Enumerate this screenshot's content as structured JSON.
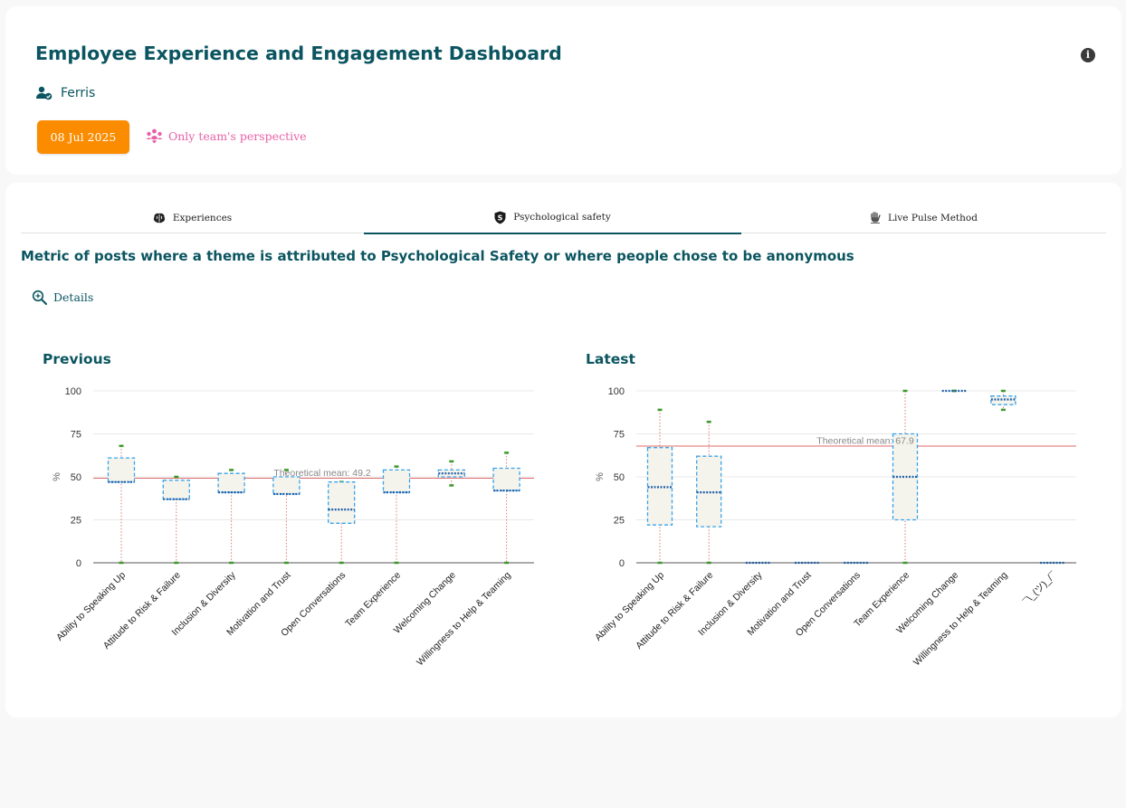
{
  "header": {
    "title": "Employee Experience and Engagement Dashboard",
    "user_name": "Ferris",
    "date_button": "08 Jul 2025",
    "perspective_label": "Only team's perspective"
  },
  "tabs": [
    {
      "label": "Experiences",
      "icon": "brain-icon",
      "active": false
    },
    {
      "label": "Psychological safety",
      "icon": "shield-icon",
      "active": true
    },
    {
      "label": "Live Pulse Method",
      "icon": "hand-icon",
      "active": false
    }
  ],
  "main": {
    "subtitle": "Metric of posts where a theme is attributed to Psychological Safety or where people chose to be anonymous",
    "details_label": "Details"
  },
  "colors": {
    "accent": "#0b5560",
    "date_button": "#fb8c00",
    "perspective": "#e861a8",
    "box_border": "#3aa3e8",
    "median": "#1f5fa8",
    "whisker": "#e07a7a",
    "whisker_cap": "#3d9a2a",
    "mean_line": "#e06a6a"
  },
  "chart_data": [
    {
      "type": "boxplot",
      "title": "Previous",
      "ylabel": "%",
      "ylim": [
        0,
        100
      ],
      "yticks": [
        0,
        25,
        50,
        75,
        100
      ],
      "grid": true,
      "mean_label": "Theoretical mean: 49.2",
      "mean": 49.2,
      "categories": [
        "Ability to Speaking Up",
        "Attitude to Risk & Failure",
        "Inclusion & Diversity",
        "Motivation and Trust",
        "Open Conversations",
        "Team Experience",
        "Welcoming Change",
        "Willingness to Help & Teaming"
      ],
      "boxes": [
        {
          "min": 0,
          "q1": 47,
          "median": 47,
          "q3": 61,
          "max": 68
        },
        {
          "min": 0,
          "q1": 37,
          "median": 37,
          "q3": 48,
          "max": 50
        },
        {
          "min": 0,
          "q1": 41,
          "median": 41,
          "q3": 52,
          "max": 54
        },
        {
          "min": 0,
          "q1": 40,
          "median": 40,
          "q3": 50,
          "max": 54
        },
        {
          "min": 0,
          "q1": 23,
          "median": 31,
          "q3": 47,
          "max": 47
        },
        {
          "min": 0,
          "q1": 41,
          "median": 41,
          "q3": 54,
          "max": 56
        },
        {
          "min": 45,
          "q1": 50,
          "median": 52,
          "q3": 54,
          "max": 59
        },
        {
          "min": 0,
          "q1": 42,
          "median": 42,
          "q3": 55,
          "max": 64
        }
      ]
    },
    {
      "type": "boxplot",
      "title": "Latest",
      "ylabel": "%",
      "ylim": [
        0,
        100
      ],
      "yticks": [
        0,
        25,
        50,
        75,
        100
      ],
      "grid": true,
      "mean_label": "Theoretical mean: 67.9",
      "mean": 67.9,
      "categories": [
        "Ability to Speaking Up",
        "Attitude to Risk & Failure",
        "Inclusion & Diversity",
        "Motivation and Trust",
        "Open Conversations",
        "Team Experience",
        "Welcoming Change",
        "Willingness to Help & Teaming",
        "¯\\_(ツ)_/¯"
      ],
      "boxes": [
        {
          "min": 0,
          "q1": 22,
          "median": 44,
          "q3": 67,
          "max": 89
        },
        {
          "min": 0,
          "q1": 21,
          "median": 41,
          "q3": 62,
          "max": 82
        },
        {
          "min": 0,
          "q1": 0,
          "median": 0,
          "q3": 0,
          "max": 0
        },
        {
          "min": 0,
          "q1": 0,
          "median": 0,
          "q3": 0,
          "max": 0
        },
        {
          "min": 0,
          "q1": 0,
          "median": 0,
          "q3": 0,
          "max": 0
        },
        {
          "min": 0,
          "q1": 25,
          "median": 50,
          "q3": 75,
          "max": 100
        },
        {
          "min": 100,
          "q1": 100,
          "median": 100,
          "q3": 100,
          "max": 100
        },
        {
          "min": 89,
          "q1": 92,
          "median": 95,
          "q3": 97,
          "max": 100
        },
        {
          "min": 0,
          "q1": 0,
          "median": 0,
          "q3": 0,
          "max": 0
        }
      ]
    }
  ]
}
